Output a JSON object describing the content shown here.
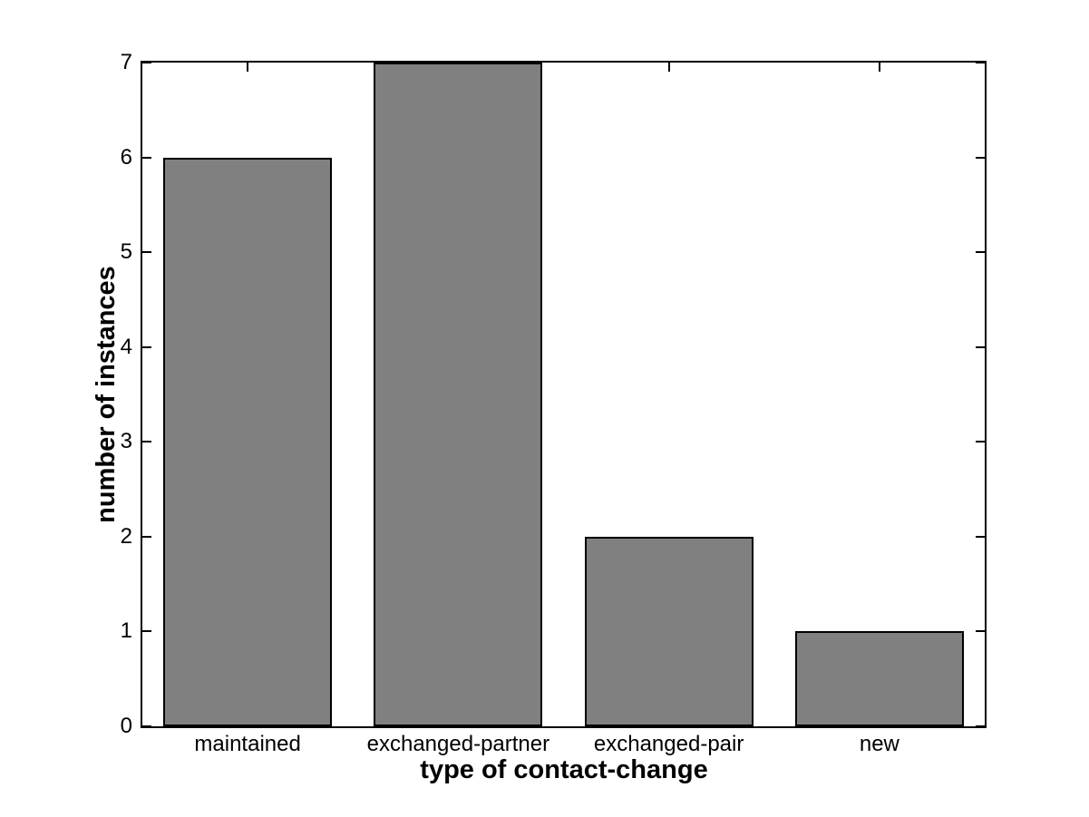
{
  "chart_data": {
    "type": "bar",
    "categories": [
      "maintained",
      "exchanged-partner",
      "exchanged-pair",
      "new"
    ],
    "values": [
      6,
      7,
      2,
      1
    ],
    "title": "",
    "xlabel": "type of contact-change",
    "ylabel": "number of instances",
    "ylim": [
      0,
      7
    ],
    "yticks": [
      0,
      1,
      2,
      3,
      4,
      5,
      6,
      7
    ],
    "bar_width_fraction": 0.8,
    "grid": false,
    "legend": null,
    "colors": {
      "bar_fill": "#808080",
      "bar_edge": "#000000",
      "axis": "#000000",
      "background": "#ffffff",
      "text": "#000000"
    }
  }
}
